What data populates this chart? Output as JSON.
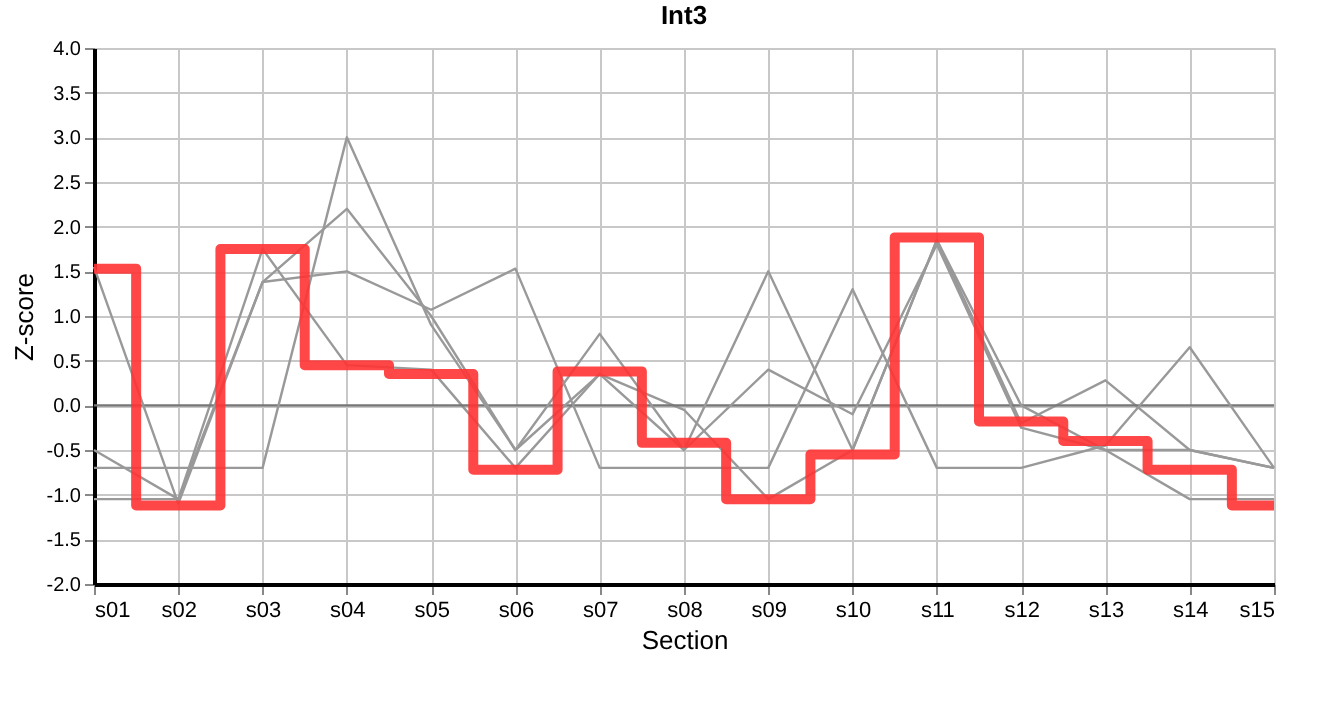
{
  "chart_data": {
    "type": "line",
    "title": "Int3",
    "xlabel": "Section",
    "ylabel": "Z-score",
    "categories": [
      "s01",
      "s02",
      "s03",
      "s04",
      "s05",
      "s06",
      "s07",
      "s08",
      "s09",
      "s10",
      "s11",
      "s12",
      "s13",
      "s14",
      "s15"
    ],
    "series": [
      {
        "color": "#999999",
        "values": [
          -0.5,
          -1.05,
          1.75,
          0.45,
          0.4,
          -0.7,
          0.35,
          -0.05,
          -1.05,
          -0.5,
          1.85,
          -0.2,
          0.28,
          -0.5,
          -0.7
        ]
      },
      {
        "color": "#999999",
        "values": [
          1.55,
          -1.1,
          1.38,
          2.2,
          1.0,
          -0.5,
          0.35,
          -0.5,
          0.4,
          -0.1,
          1.8,
          -0.25,
          -0.5,
          -1.05,
          -1.05
        ]
      },
      {
        "color": "#999999",
        "values": [
          -0.7,
          -0.7,
          -0.7,
          3.0,
          0.9,
          -0.5,
          0.8,
          -0.5,
          1.5,
          -0.5,
          1.85,
          0.0,
          -0.5,
          -0.5,
          -0.7
        ]
      },
      {
        "color": "#999999",
        "values": [
          -1.05,
          -1.05,
          1.38,
          1.5,
          1.07,
          1.53,
          -0.7,
          -0.7,
          -0.7,
          1.3,
          -0.7,
          -0.7,
          -0.45,
          0.65,
          -0.7
        ]
      },
      {
        "type": "step",
        "color": "#ff3333",
        "values": [
          1.53,
          -1.12,
          1.75,
          0.45,
          0.35,
          -0.72,
          0.38,
          -0.42,
          -1.05,
          -0.55,
          1.88,
          -0.18,
          -0.4,
          -0.72,
          -1.12
        ]
      }
    ],
    "ylim": [
      -2.0,
      4.0
    ],
    "yticks": [
      {
        "value": -2,
        "label": "-2.0"
      },
      {
        "value": -1.5,
        "label": "-1.5"
      },
      {
        "value": -1,
        "label": "-1.0"
      },
      {
        "value": -0.5,
        "label": "-0.5"
      },
      {
        "value": 0,
        "label": "0.0"
      },
      {
        "value": 0.5,
        "label": "0.5"
      },
      {
        "value": 1,
        "label": "1.0"
      },
      {
        "value": 1.5,
        "label": "1.5"
      },
      {
        "value": 2,
        "label": "2.0"
      },
      {
        "value": 2.5,
        "label": "2.5"
      },
      {
        "value": 3,
        "label": "3.0"
      },
      {
        "value": 3.5,
        "label": "3.5"
      },
      {
        "value": 4,
        "label": "4.0"
      }
    ],
    "ref_lines": [
      {
        "axis": "y",
        "value": 0,
        "color": "#777777"
      }
    ],
    "grid": true,
    "marker": "none",
    "line_style": "solid"
  }
}
